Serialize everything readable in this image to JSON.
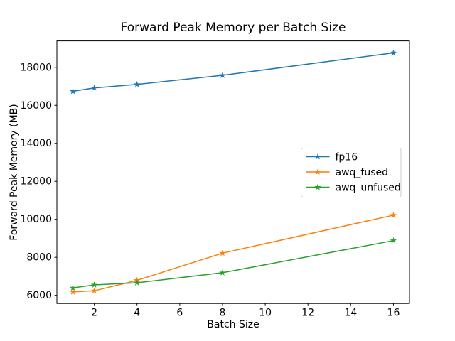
{
  "figure": {
    "title": "Forward Peak Memory per Batch Size",
    "xlabel": "Batch Size",
    "ylabel": "Forward Peak Memory (MB)"
  },
  "chart_data": {
    "type": "line",
    "title": "Forward Peak Memory per Batch Size",
    "xlabel": "Batch Size",
    "ylabel": "Forward Peak Memory (MB)",
    "x": [
      1,
      2,
      4,
      8,
      16
    ],
    "series": [
      {
        "name": "fp16",
        "color": "#1f77b4",
        "marker": "star",
        "values": [
          16740,
          16920,
          17100,
          17580,
          18760
        ]
      },
      {
        "name": "awq_fused",
        "color": "#ff7f0e",
        "marker": "star",
        "values": [
          6180,
          6240,
          6790,
          8220,
          10220
        ]
      },
      {
        "name": "awq_unfused",
        "color": "#2ca02c",
        "marker": "star",
        "values": [
          6390,
          6550,
          6660,
          7190,
          8880
        ]
      }
    ],
    "xticks": [
      2,
      4,
      6,
      8,
      10,
      12,
      14,
      16
    ],
    "yticks": [
      6000,
      8000,
      10000,
      12000,
      14000,
      16000,
      18000
    ],
    "xlim": [
      0.25,
      16.75
    ],
    "ylim": [
      5570,
      19390
    ],
    "grid": false,
    "legend_position": "center right",
    "spine_color": "#000000",
    "background_color": "#ffffff",
    "line_width": 1.5,
    "marker_size": 4.3
  }
}
